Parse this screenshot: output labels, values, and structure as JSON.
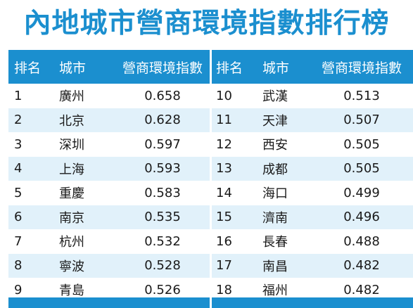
{
  "title": "內地城市營商環境指數排行榜",
  "headers": {
    "rank": "排名",
    "city": "城市",
    "index": "營商環境指數"
  },
  "colors": {
    "accent": "#1b8fcf",
    "row_alt": "#e1f1fa"
  },
  "left_rows": [
    {
      "rank": "1",
      "city": "廣州",
      "index": "0.658"
    },
    {
      "rank": "2",
      "city": "北京",
      "index": "0.628"
    },
    {
      "rank": "3",
      "city": "深圳",
      "index": "0.597"
    },
    {
      "rank": "4",
      "city": "上海",
      "index": "0.593"
    },
    {
      "rank": "5",
      "city": "重慶",
      "index": "0.583"
    },
    {
      "rank": "6",
      "city": "南京",
      "index": "0.535"
    },
    {
      "rank": "7",
      "city": "杭州",
      "index": "0.532"
    },
    {
      "rank": "8",
      "city": "寧波",
      "index": "0.528"
    },
    {
      "rank": "9",
      "city": "青島",
      "index": "0.526"
    }
  ],
  "right_rows": [
    {
      "rank": "10",
      "city": "武漢",
      "index": "0.513"
    },
    {
      "rank": "11",
      "city": "天津",
      "index": "0.507"
    },
    {
      "rank": "12",
      "city": "西安",
      "index": "0.505"
    },
    {
      "rank": "13",
      "city": "成都",
      "index": "0.505"
    },
    {
      "rank": "14",
      "city": "海口",
      "index": "0.499"
    },
    {
      "rank": "15",
      "city": "濟南",
      "index": "0.496"
    },
    {
      "rank": "16",
      "city": "長春",
      "index": "0.488"
    },
    {
      "rank": "17",
      "city": "南昌",
      "index": "0.482"
    },
    {
      "rank": "18",
      "city": "福州",
      "index": "0.482"
    }
  ]
}
